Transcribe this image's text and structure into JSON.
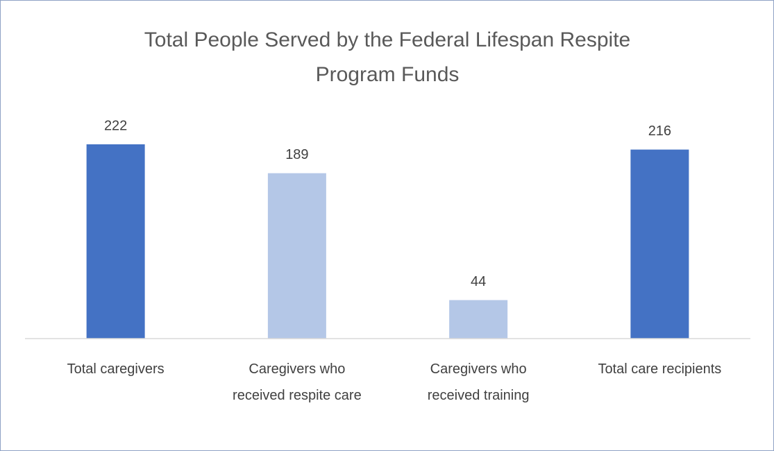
{
  "chart_data": {
    "type": "bar",
    "title": "Total People Served by the Federal Lifespan Respite Program Funds",
    "categories": [
      "Total caregivers",
      "Caregivers who received respite care",
      "Caregivers who received training",
      "Total care recipients"
    ],
    "values": [
      222,
      189,
      44,
      216
    ],
    "colors": [
      "#4472c4",
      "#b4c7e7",
      "#b4c7e7",
      "#4472c4"
    ]
  }
}
